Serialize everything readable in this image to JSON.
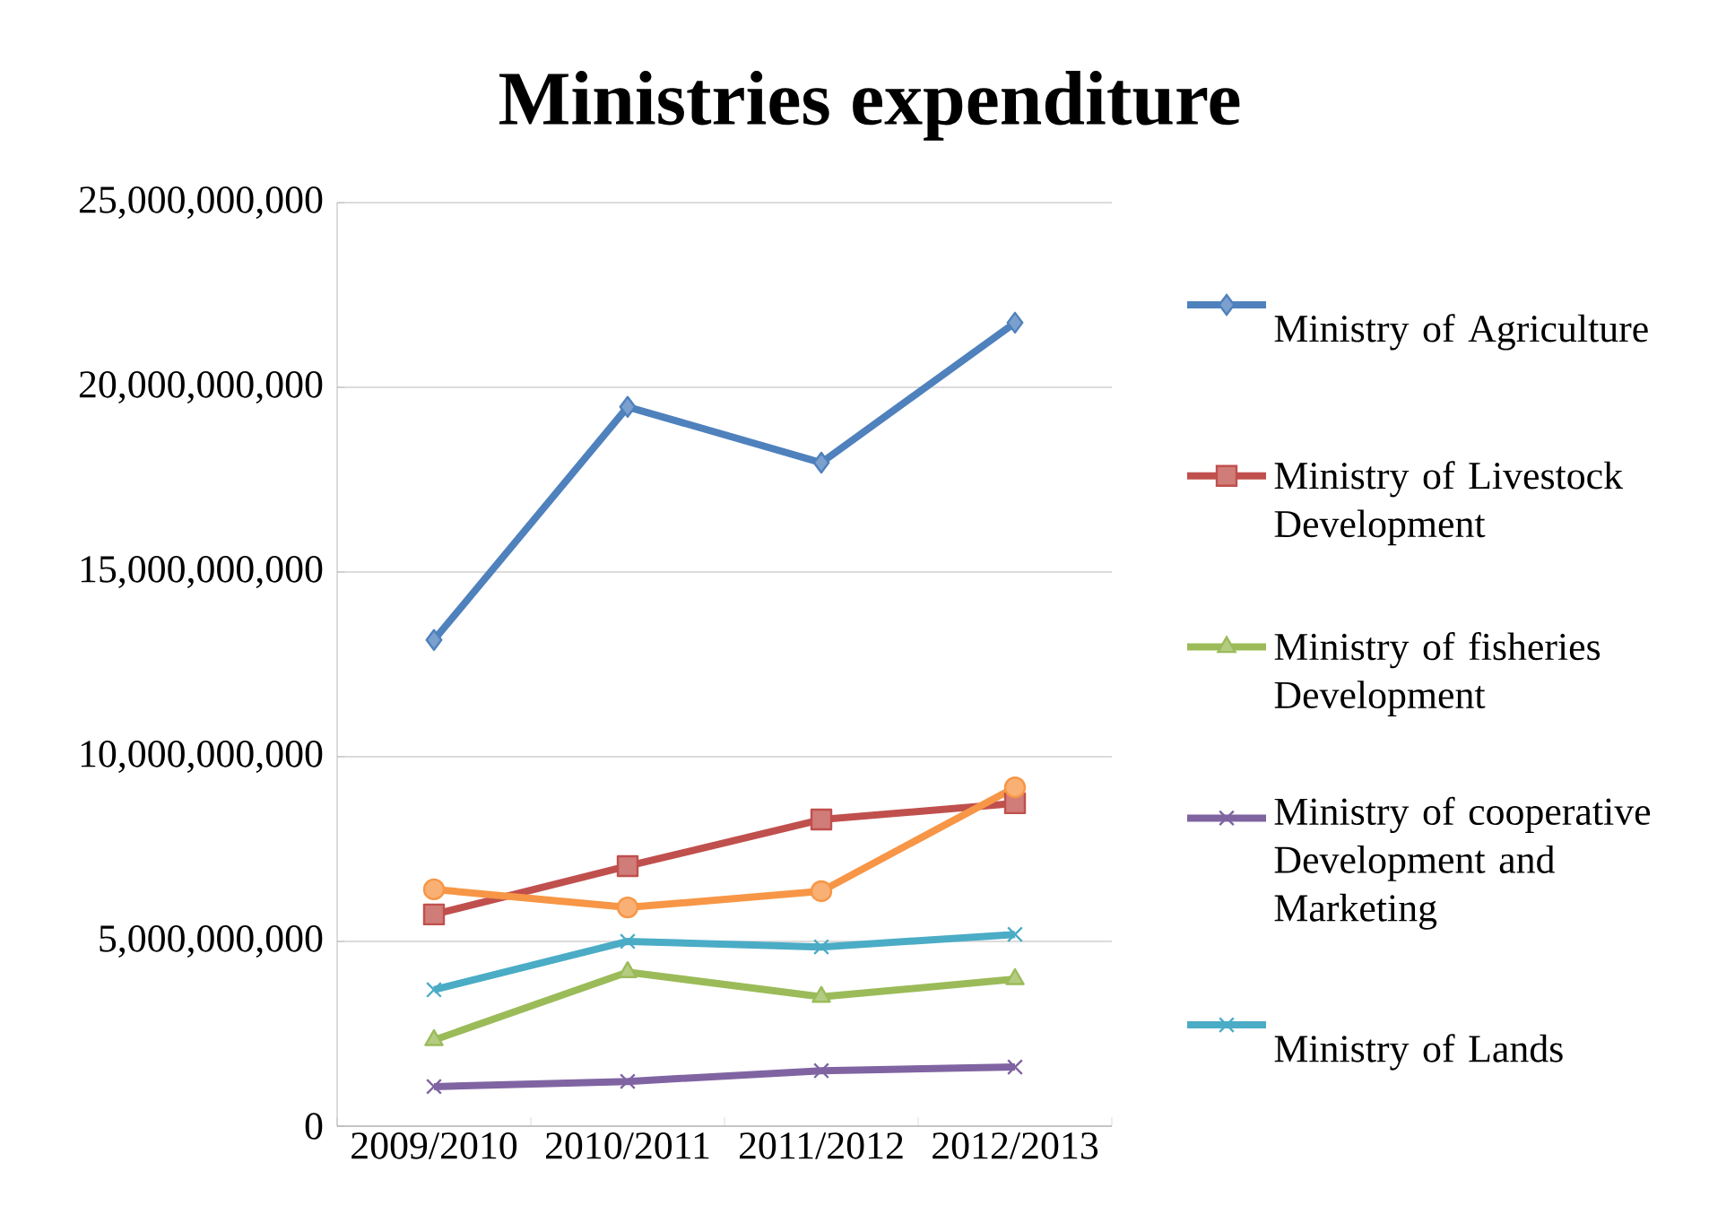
{
  "chart_data": {
    "type": "line",
    "title": "Ministries expenditure",
    "categories": [
      "2009/2010",
      "2010/2011",
      "2011/2012",
      "2012/2013"
    ],
    "ylim": [
      0,
      25000000000
    ],
    "yticks": [
      {
        "value": 0,
        "label": "0"
      },
      {
        "value": 5000000000,
        "label": "5,000,000,000"
      },
      {
        "value": 10000000000,
        "label": "10,000,000,000"
      },
      {
        "value": 15000000000,
        "label": "15,000,000,000"
      },
      {
        "value": 20000000000,
        "label": "20,000,000,000"
      },
      {
        "value": 25000000000,
        "label": "25,000,000,000"
      }
    ],
    "grid": "y",
    "legend": "right",
    "series": [
      {
        "name": "Ministry of Agriculture",
        "color": "#4f81bd",
        "marker": "diamond",
        "values": [
          13160000000,
          19470000000,
          17960000000,
          21750000000
        ]
      },
      {
        "name": "Ministry of Livestock Development",
        "color": "#c0504d",
        "marker": "square",
        "values": [
          5730000000,
          7040000000,
          8300000000,
          8740000000
        ]
      },
      {
        "name": "Ministry of fisheries Development",
        "color": "#9bbb59",
        "marker": "triangle",
        "values": [
          2330000000,
          4170000000,
          3500000000,
          3980000000
        ]
      },
      {
        "name": "Ministry of cooperative Development and Marketing",
        "color": "#8064a2",
        "marker": "cross",
        "values": [
          1070000000,
          1210000000,
          1500000000,
          1600000000
        ]
      },
      {
        "name": "Ministry of Lands",
        "color": "#4bacc6",
        "marker": "cross",
        "values": [
          3690000000,
          5000000000,
          4850000000,
          5190000000
        ]
      },
      {
        "color": "#f79646",
        "marker": "circle",
        "values": [
          6410000000,
          5920000000,
          6360000000,
          9170000000
        ]
      }
    ]
  }
}
